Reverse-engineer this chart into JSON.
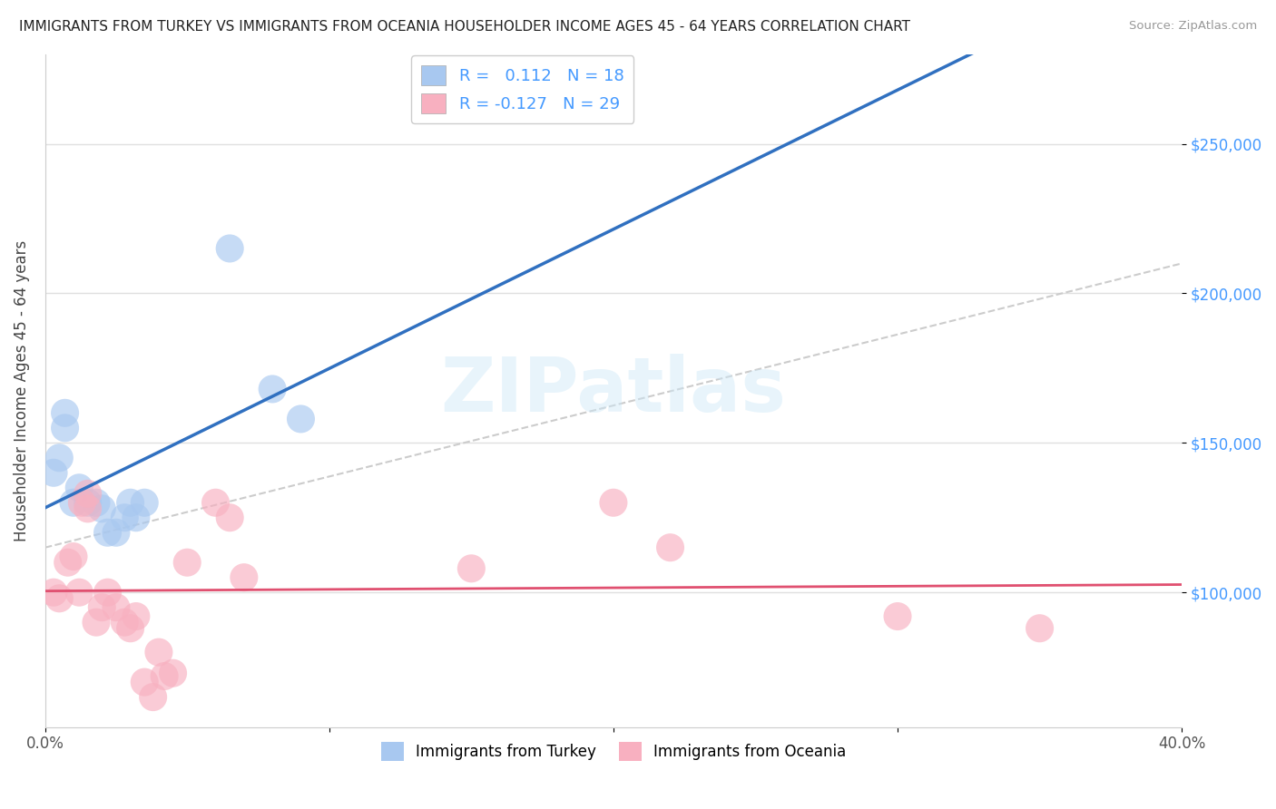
{
  "title": "IMMIGRANTS FROM TURKEY VS IMMIGRANTS FROM OCEANIA HOUSEHOLDER INCOME AGES 45 - 64 YEARS CORRELATION CHART",
  "source": "Source: ZipAtlas.com",
  "ylabel": "Householder Income Ages 45 - 64 years",
  "xlim": [
    0.0,
    0.4
  ],
  "ylim": [
    55000,
    280000
  ],
  "ytick_labels": [
    "$100,000",
    "$150,000",
    "$200,000",
    "$250,000"
  ],
  "ytick_values": [
    100000,
    150000,
    200000,
    250000
  ],
  "turkey_color": "#a8c8f0",
  "turkey_line_color": "#3070c0",
  "oceania_color": "#f8b0c0",
  "oceania_line_color": "#e05070",
  "turkey_R": 0.112,
  "turkey_N": 18,
  "oceania_R": -0.127,
  "oceania_N": 29,
  "background_color": "#ffffff",
  "turkey_x": [
    0.003,
    0.005,
    0.007,
    0.007,
    0.01,
    0.012,
    0.015,
    0.018,
    0.02,
    0.022,
    0.025,
    0.028,
    0.03,
    0.032,
    0.035,
    0.065,
    0.08,
    0.09
  ],
  "turkey_y": [
    140000,
    145000,
    155000,
    160000,
    130000,
    135000,
    130000,
    130000,
    128000,
    120000,
    120000,
    125000,
    130000,
    125000,
    130000,
    215000,
    168000,
    158000
  ],
  "oceania_x": [
    0.003,
    0.005,
    0.008,
    0.01,
    0.012,
    0.013,
    0.015,
    0.015,
    0.018,
    0.02,
    0.022,
    0.025,
    0.028,
    0.03,
    0.032,
    0.035,
    0.038,
    0.04,
    0.042,
    0.045,
    0.05,
    0.06,
    0.065,
    0.07,
    0.15,
    0.2,
    0.22,
    0.3,
    0.35
  ],
  "oceania_y": [
    100000,
    98000,
    110000,
    112000,
    100000,
    130000,
    133000,
    128000,
    90000,
    95000,
    100000,
    95000,
    90000,
    88000,
    92000,
    70000,
    65000,
    80000,
    72000,
    73000,
    110000,
    130000,
    125000,
    105000,
    108000,
    130000,
    115000,
    92000,
    88000
  ]
}
